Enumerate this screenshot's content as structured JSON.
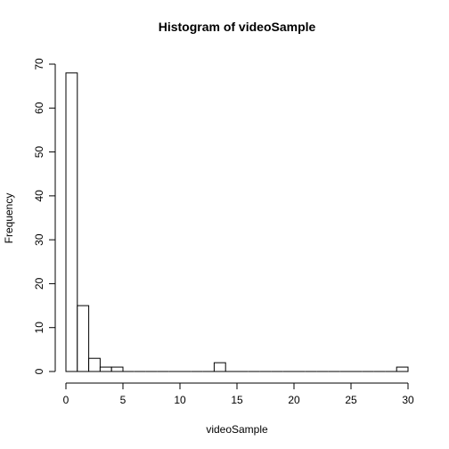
{
  "chart_data": {
    "type": "bar",
    "subtype": "histogram",
    "title": "Histogram of videoSample",
    "xlabel": "videoSample",
    "ylabel": "Frequency",
    "xlim": [
      0,
      30
    ],
    "ylim": [
      0,
      70
    ],
    "xticks": [
      "0",
      "5",
      "10",
      "15",
      "20",
      "25",
      "30"
    ],
    "yticks": [
      "0",
      "10",
      "20",
      "30",
      "40",
      "50",
      "60",
      "70"
    ],
    "bin_width": 1,
    "bins": [
      {
        "start": 0,
        "end": 1,
        "count": 68
      },
      {
        "start": 1,
        "end": 2,
        "count": 15
      },
      {
        "start": 2,
        "end": 3,
        "count": 3
      },
      {
        "start": 3,
        "end": 4,
        "count": 1
      },
      {
        "start": 4,
        "end": 5,
        "count": 1
      },
      {
        "start": 5,
        "end": 6,
        "count": 0
      },
      {
        "start": 6,
        "end": 7,
        "count": 0
      },
      {
        "start": 7,
        "end": 8,
        "count": 0
      },
      {
        "start": 8,
        "end": 9,
        "count": 0
      },
      {
        "start": 9,
        "end": 10,
        "count": 0
      },
      {
        "start": 10,
        "end": 11,
        "count": 0
      },
      {
        "start": 11,
        "end": 12,
        "count": 0
      },
      {
        "start": 12,
        "end": 13,
        "count": 0
      },
      {
        "start": 13,
        "end": 14,
        "count": 2
      },
      {
        "start": 14,
        "end": 15,
        "count": 0
      },
      {
        "start": 15,
        "end": 16,
        "count": 0
      },
      {
        "start": 16,
        "end": 17,
        "count": 0
      },
      {
        "start": 17,
        "end": 18,
        "count": 0
      },
      {
        "start": 18,
        "end": 19,
        "count": 0
      },
      {
        "start": 19,
        "end": 20,
        "count": 0
      },
      {
        "start": 20,
        "end": 21,
        "count": 0
      },
      {
        "start": 21,
        "end": 22,
        "count": 0
      },
      {
        "start": 22,
        "end": 23,
        "count": 0
      },
      {
        "start": 23,
        "end": 24,
        "count": 0
      },
      {
        "start": 24,
        "end": 25,
        "count": 0
      },
      {
        "start": 25,
        "end": 26,
        "count": 0
      },
      {
        "start": 26,
        "end": 27,
        "count": 0
      },
      {
        "start": 27,
        "end": 28,
        "count": 0
      },
      {
        "start": 28,
        "end": 29,
        "count": 0
      },
      {
        "start": 29,
        "end": 30,
        "count": 1
      }
    ],
    "fill_color": "#ffffff",
    "stroke_color": "#000000",
    "grid": false,
    "legend": "none"
  }
}
